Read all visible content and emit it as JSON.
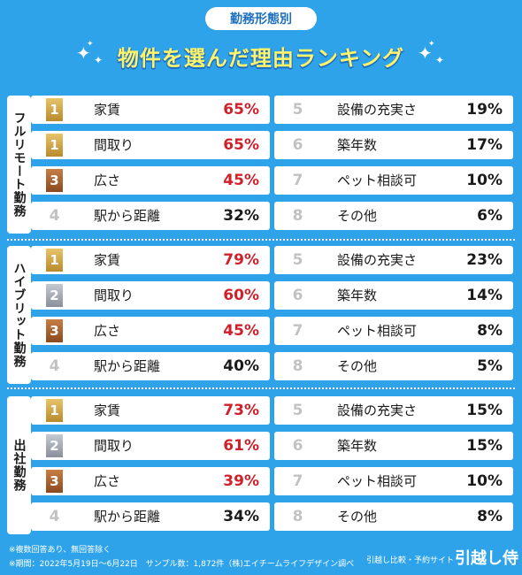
{
  "header": {
    "badge": "勤務形態別",
    "title": "物件を選んだ理由ランキング"
  },
  "chart_data": [
    {
      "type": "table",
      "group": "フルリモート勤務",
      "items": [
        {
          "rank": "1",
          "medal": "gold",
          "label": "家賃",
          "value": "65%",
          "highlight": true
        },
        {
          "rank": "1",
          "medal": "gold",
          "label": "間取り",
          "value": "65%",
          "highlight": true
        },
        {
          "rank": "3",
          "medal": "bronze",
          "label": "広さ",
          "value": "45%",
          "highlight": true
        },
        {
          "rank": "4",
          "medal": "none",
          "label": "駅から距離",
          "value": "32%",
          "highlight": false
        },
        {
          "rank": "5",
          "medal": "none",
          "label": "設備の充実さ",
          "value": "19%",
          "highlight": false
        },
        {
          "rank": "6",
          "medal": "none",
          "label": "築年数",
          "value": "17%",
          "highlight": false
        },
        {
          "rank": "7",
          "medal": "none",
          "label": "ペット相談可",
          "value": "10%",
          "highlight": false
        },
        {
          "rank": "8",
          "medal": "none",
          "label": "その他",
          "value": "6%",
          "highlight": false
        }
      ]
    },
    {
      "type": "table",
      "group": "ハイブリット勤務",
      "items": [
        {
          "rank": "1",
          "medal": "gold",
          "label": "家賃",
          "value": "79%",
          "highlight": true
        },
        {
          "rank": "2",
          "medal": "silver",
          "label": "間取り",
          "value": "60%",
          "highlight": true
        },
        {
          "rank": "3",
          "medal": "bronze",
          "label": "広さ",
          "value": "45%",
          "highlight": true
        },
        {
          "rank": "4",
          "medal": "none",
          "label": "駅から距離",
          "value": "40%",
          "highlight": false
        },
        {
          "rank": "5",
          "medal": "none",
          "label": "設備の充実さ",
          "value": "23%",
          "highlight": false
        },
        {
          "rank": "6",
          "medal": "none",
          "label": "築年数",
          "value": "14%",
          "highlight": false
        },
        {
          "rank": "7",
          "medal": "none",
          "label": "ペット相談可",
          "value": "8%",
          "highlight": false
        },
        {
          "rank": "8",
          "medal": "none",
          "label": "その他",
          "value": "5%",
          "highlight": false
        }
      ]
    },
    {
      "type": "table",
      "group": "出社勤務",
      "items": [
        {
          "rank": "1",
          "medal": "gold",
          "label": "家賃",
          "value": "73%",
          "highlight": true
        },
        {
          "rank": "2",
          "medal": "silver",
          "label": "間取り",
          "value": "61%",
          "highlight": true
        },
        {
          "rank": "3",
          "medal": "bronze",
          "label": "広さ",
          "value": "39%",
          "highlight": true
        },
        {
          "rank": "4",
          "medal": "none",
          "label": "駅から距離",
          "value": "34%",
          "highlight": false
        },
        {
          "rank": "5",
          "medal": "none",
          "label": "設備の充実さ",
          "value": "15%",
          "highlight": false
        },
        {
          "rank": "6",
          "medal": "none",
          "label": "築年数",
          "value": "15%",
          "highlight": false
        },
        {
          "rank": "7",
          "medal": "none",
          "label": "ペット相談可",
          "value": "10%",
          "highlight": false
        },
        {
          "rank": "8",
          "medal": "none",
          "label": "その他",
          "value": "8%",
          "highlight": false
        }
      ]
    }
  ],
  "footer": {
    "note": "※複数回答あり、無回答除く",
    "period": "※期間：2022年5月19日〜6月22日　サンプル数：1,872件（株)エイチームライフデザイン調べ",
    "brand_caption": "引越し比較・予約サイト",
    "brand_name": "引越し侍"
  },
  "colors": {
    "background": "#2fa3ea",
    "title": "#fff36a",
    "highlight_value": "#d0202a"
  }
}
